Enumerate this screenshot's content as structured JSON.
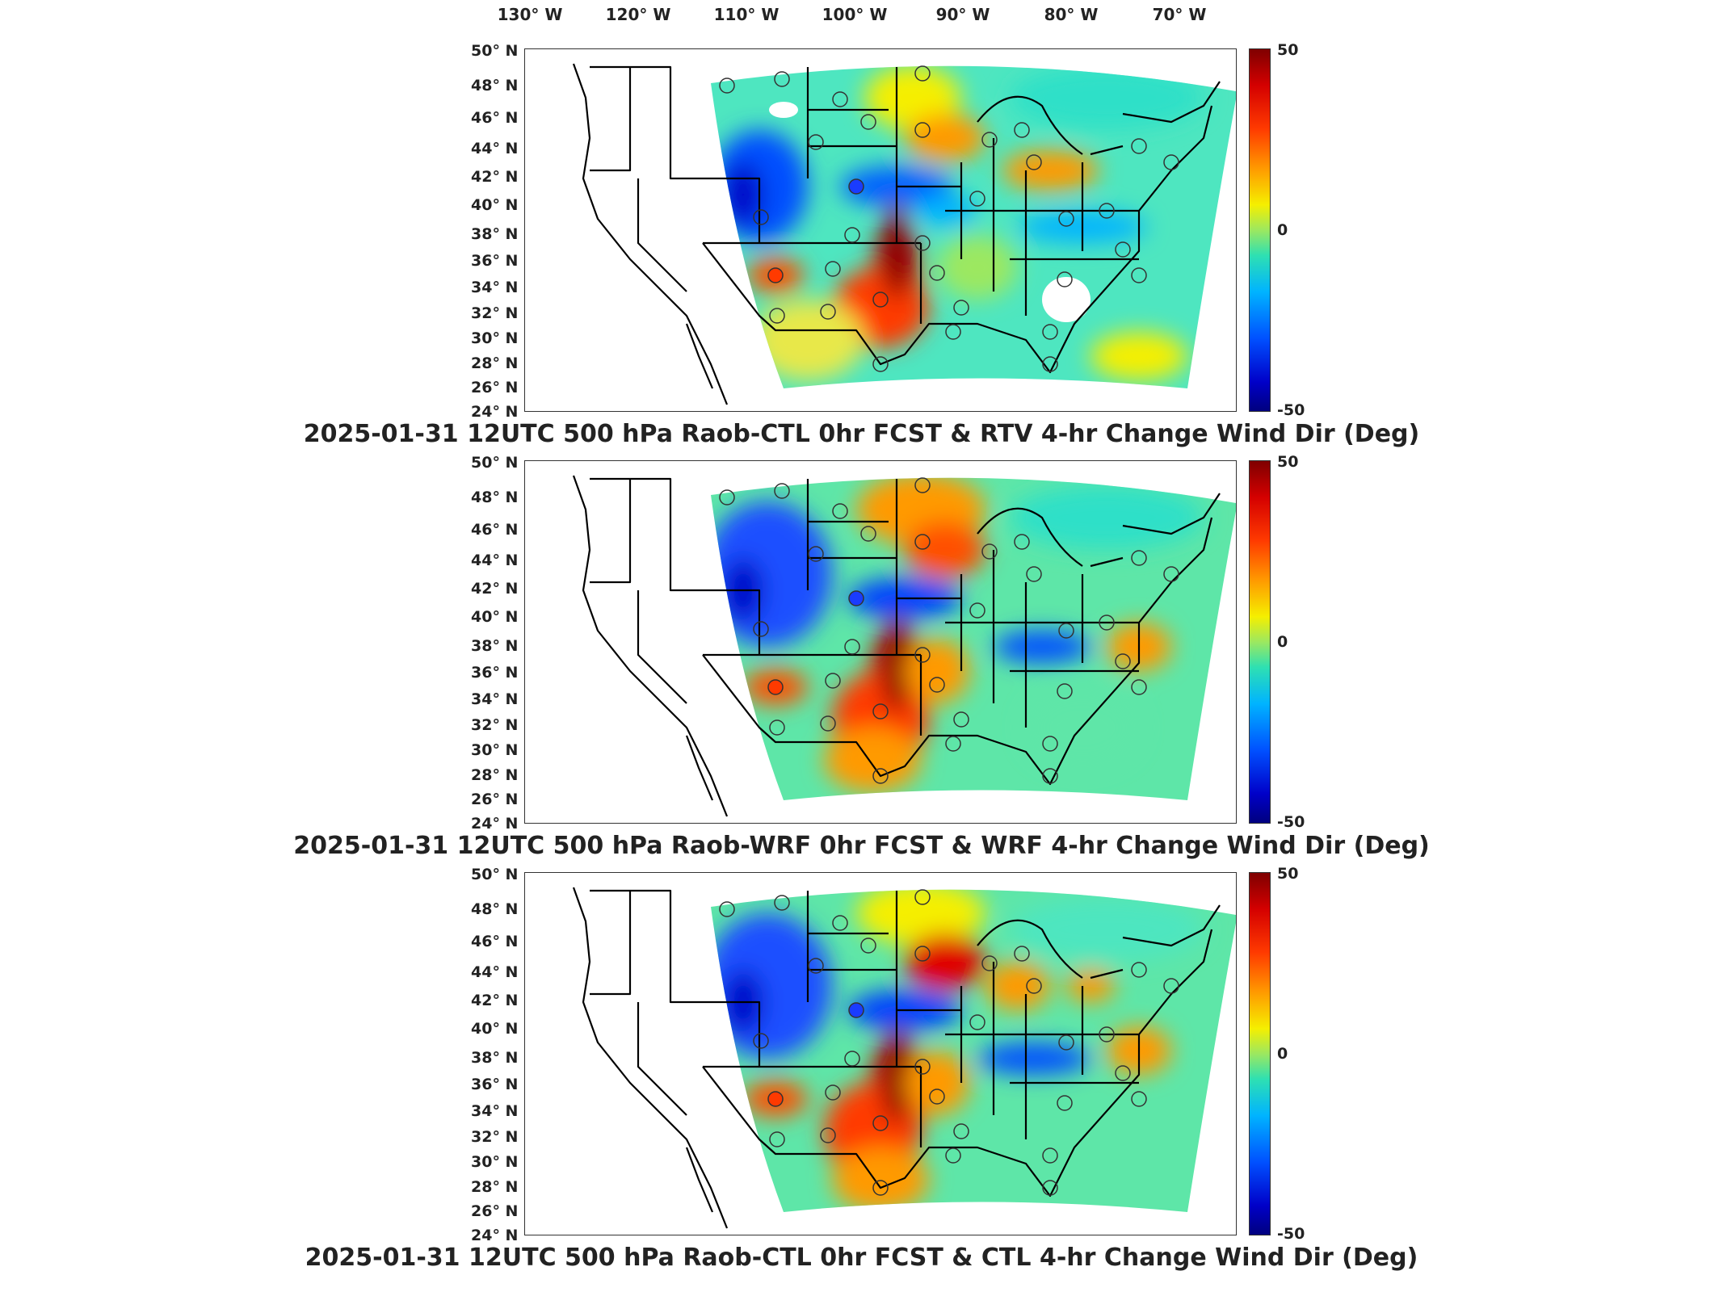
{
  "lon_ticks": [
    "130° W",
    "120° W",
    "110° W",
    "100° W",
    "90° W",
    "80° W",
    "70° W"
  ],
  "lat_ticks": [
    "50° N",
    "48° N",
    "46° N",
    "44° N",
    "42° N",
    "40° N",
    "38° N",
    "36° N",
    "34° N",
    "32° N",
    "30° N",
    "28° N",
    "26° N",
    "24° N"
  ],
  "colorbar": {
    "max": "50",
    "mid": "0",
    "min": "-50"
  },
  "panels": [
    {
      "title": "2025-01-31 12UTC 500 hPa Raob-CTL 0hr FCST & RTV 4-hr Change Wind Dir (Deg)"
    },
    {
      "title": "2025-01-31 12UTC 500 hPa Raob-WRF 0hr FCST & WRF 4-hr Change Wind Dir (Deg)"
    },
    {
      "title": "2025-01-31 12UTC 500 hPa Raob-CTL 0hr FCST & CTL 4-hr Change Wind Dir (Deg)"
    }
  ],
  "colors": {
    "deep_red": "#7f0000",
    "red": "#e00000",
    "orange": "#ff9a00",
    "yellow": "#f5ef00",
    "green": "#80e87a",
    "cyan": "#2ee0c8",
    "light_blue": "#00b4ff",
    "blue": "#0050ff",
    "navy": "#00007f"
  }
}
